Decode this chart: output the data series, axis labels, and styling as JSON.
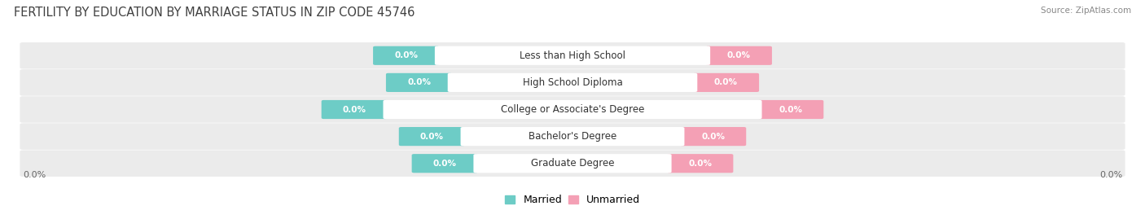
{
  "title": "FERTILITY BY EDUCATION BY MARRIAGE STATUS IN ZIP CODE 45746",
  "source": "Source: ZipAtlas.com",
  "categories": [
    "Less than High School",
    "High School Diploma",
    "College or Associate's Degree",
    "Bachelor's Degree",
    "Graduate Degree"
  ],
  "married_values": [
    0.0,
    0.0,
    0.0,
    0.0,
    0.0
  ],
  "unmarried_values": [
    0.0,
    0.0,
    0.0,
    0.0,
    0.0
  ],
  "married_color": "#6DCCC6",
  "unmarried_color": "#F4A0B5",
  "row_bg_color": "#EBEBEB",
  "page_bg_color": "#FFFFFF",
  "title_fontsize": 10.5,
  "source_fontsize": 7.5,
  "label_fontsize": 8,
  "cat_fontsize": 8.5,
  "value_fontsize": 7.5,
  "legend_married": "Married",
  "legend_unmarried": "Unmarried",
  "left_tick": "0.0%",
  "right_tick": "0.0%"
}
